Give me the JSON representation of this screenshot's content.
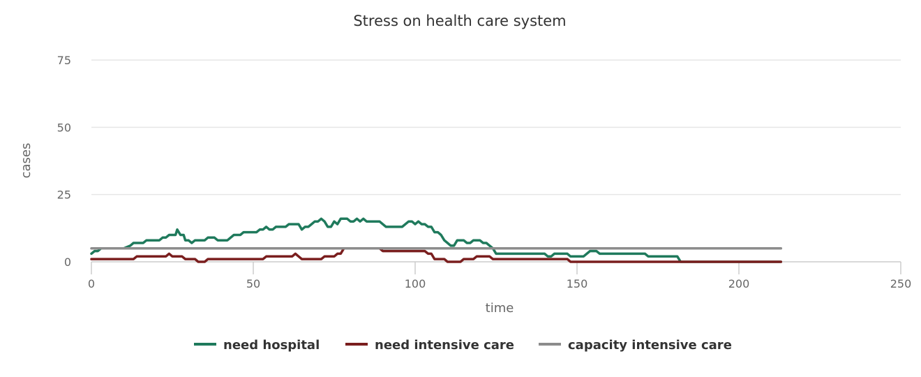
{
  "chart_data": {
    "type": "line",
    "title": "Stress on health care system",
    "xlabel": "time",
    "ylabel": "cases",
    "xlim": [
      0,
      250
    ],
    "ylim": [
      0,
      75
    ],
    "x_ticks": [
      0,
      50,
      100,
      150,
      200,
      250
    ],
    "y_ticks": [
      0,
      25,
      50,
      75
    ],
    "grid": true,
    "legend": "bottom",
    "series": [
      {
        "name": "need hospital",
        "color": "#1f7a5c",
        "points": [
          [
            0,
            3
          ],
          [
            1,
            4
          ],
          [
            2,
            4
          ],
          [
            3,
            5
          ],
          [
            10,
            5
          ],
          [
            12,
            6
          ],
          [
            13,
            7
          ],
          [
            16,
            7
          ],
          [
            17,
            8
          ],
          [
            21,
            8
          ],
          [
            22,
            9
          ],
          [
            23,
            9
          ],
          [
            24,
            10
          ],
          [
            26,
            10
          ],
          [
            26.5,
            12
          ],
          [
            27.5,
            10
          ],
          [
            28.5,
            10
          ],
          [
            29,
            8
          ],
          [
            30,
            8
          ],
          [
            31,
            7
          ],
          [
            32,
            8
          ],
          [
            35,
            8
          ],
          [
            36,
            9
          ],
          [
            38,
            9
          ],
          [
            39,
            8
          ],
          [
            42,
            8
          ],
          [
            44,
            10
          ],
          [
            46,
            10
          ],
          [
            47,
            11
          ],
          [
            51,
            11
          ],
          [
            52,
            12
          ],
          [
            53,
            12
          ],
          [
            54,
            13
          ],
          [
            55,
            12
          ],
          [
            56,
            12
          ],
          [
            57,
            13
          ],
          [
            60,
            13
          ],
          [
            61,
            14
          ],
          [
            64,
            14
          ],
          [
            65,
            12
          ],
          [
            66,
            13
          ],
          [
            67,
            13
          ],
          [
            68,
            14
          ],
          [
            69,
            15
          ],
          [
            70,
            15
          ],
          [
            71,
            16
          ],
          [
            72,
            15
          ],
          [
            73,
            13
          ],
          [
            74,
            13
          ],
          [
            75,
            15
          ],
          [
            76,
            14
          ],
          [
            77,
            16
          ],
          [
            79,
            16
          ],
          [
            80,
            15
          ],
          [
            81,
            15
          ],
          [
            82,
            16
          ],
          [
            83,
            15
          ],
          [
            84,
            16
          ],
          [
            85,
            15
          ],
          [
            89,
            15
          ],
          [
            90,
            14
          ],
          [
            91,
            13
          ],
          [
            96,
            13
          ],
          [
            98,
            15
          ],
          [
            99,
            15
          ],
          [
            100,
            14
          ],
          [
            101,
            15
          ],
          [
            102,
            14
          ],
          [
            103,
            14
          ],
          [
            104,
            13
          ],
          [
            105,
            13
          ],
          [
            106,
            11
          ],
          [
            107,
            11
          ],
          [
            108,
            10
          ],
          [
            109,
            8
          ],
          [
            110,
            7
          ],
          [
            111,
            6
          ],
          [
            112,
            6
          ],
          [
            113,
            8
          ],
          [
            115,
            8
          ],
          [
            116,
            7
          ],
          [
            117,
            7
          ],
          [
            118,
            8
          ],
          [
            120,
            8
          ],
          [
            121,
            7
          ],
          [
            122,
            7
          ],
          [
            123,
            6
          ],
          [
            124,
            5
          ],
          [
            125,
            3
          ],
          [
            140,
            3
          ],
          [
            141,
            2
          ],
          [
            142,
            2
          ],
          [
            143,
            3
          ],
          [
            147,
            3
          ],
          [
            148,
            2
          ],
          [
            152,
            2
          ],
          [
            154,
            4
          ],
          [
            156,
            4
          ],
          [
            157,
            3
          ],
          [
            171,
            3
          ],
          [
            172,
            2
          ],
          [
            181,
            2
          ],
          [
            182,
            0
          ],
          [
            213,
            0
          ]
        ]
      },
      {
        "name": "need intensive care",
        "color": "#7a1e1e",
        "points": [
          [
            0,
            1
          ],
          [
            13,
            1
          ],
          [
            14,
            2
          ],
          [
            23,
            2
          ],
          [
            24,
            3
          ],
          [
            25,
            2
          ],
          [
            28,
            2
          ],
          [
            29,
            1
          ],
          [
            32,
            1
          ],
          [
            33,
            0
          ],
          [
            35,
            0
          ],
          [
            36,
            1
          ],
          [
            53,
            1
          ],
          [
            54,
            2
          ],
          [
            62,
            2
          ],
          [
            63,
            3
          ],
          [
            64,
            2
          ],
          [
            65,
            1
          ],
          [
            71,
            1
          ],
          [
            72,
            2
          ],
          [
            75,
            2
          ],
          [
            76,
            3
          ],
          [
            77,
            3
          ],
          [
            78,
            5
          ],
          [
            89,
            5
          ],
          [
            90,
            4
          ],
          [
            103,
            4
          ],
          [
            104,
            3
          ],
          [
            105,
            3
          ],
          [
            106,
            1
          ],
          [
            109,
            1
          ],
          [
            110,
            0
          ],
          [
            114,
            0
          ],
          [
            115,
            1
          ],
          [
            118,
            1
          ],
          [
            119,
            2
          ],
          [
            123,
            2
          ],
          [
            124,
            1
          ],
          [
            147,
            1
          ],
          [
            148,
            0
          ],
          [
            213,
            0
          ]
        ]
      },
      {
        "name": "capacity intensive care",
        "color": "#8c8c8c",
        "points": [
          [
            0,
            5
          ],
          [
            213,
            5
          ]
        ]
      }
    ]
  }
}
